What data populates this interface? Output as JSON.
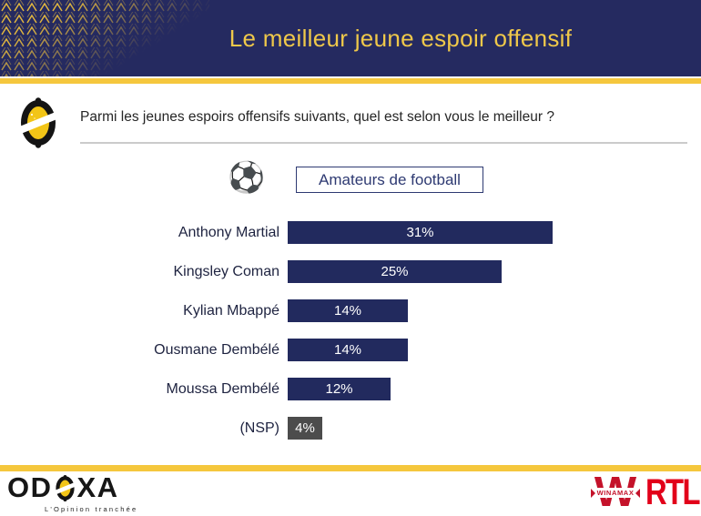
{
  "header": {
    "title": "Le meilleur jeune espoir offensif",
    "bg_color": "#252A60",
    "accent_color": "#F5C73D",
    "title_color": "#EFC84A"
  },
  "question": {
    "text": "Parmi les jeunes espoirs offensifs suivants, quel est selon vous le meilleur ?"
  },
  "audience": {
    "label": "Amateurs de football",
    "icon": "soccer-ball-icon",
    "icon_char": "⚽"
  },
  "chart_data": {
    "type": "bar",
    "orientation": "horizontal",
    "title": "Le meilleur jeune espoir offensif",
    "subtitle": "Amateurs de football",
    "categories": [
      "Anthony Martial",
      "Kingsley Coman",
      "Kylian Mbappé",
      "Ousmane Dembélé",
      "Moussa Dembélé",
      "(NSP)"
    ],
    "values": [
      31,
      25,
      14,
      14,
      12,
      4
    ],
    "value_labels": [
      "31%",
      "25%",
      "14%",
      "14%",
      "12%",
      "4%"
    ],
    "unit": "%",
    "bar_colors": [
      "#222A5E",
      "#222A5E",
      "#222A5E",
      "#222A5E",
      "#222A5E",
      "#4C4C4C"
    ],
    "value_label_position": "inside-center",
    "grid": false,
    "legend": false,
    "xlim": [
      0,
      33
    ]
  },
  "footer": {
    "odoxa": {
      "name_prefix": "OD",
      "name_suffix": "XA",
      "tagline": "L'Opinion tranchée",
      "brand_yellow": "#F2C517"
    },
    "winamax": {
      "letter": "W",
      "banner_label": "WINAMAX",
      "brand_red": "#C4122A"
    },
    "rtl": {
      "label": "RTL",
      "brand_red": "#E2001A"
    }
  }
}
